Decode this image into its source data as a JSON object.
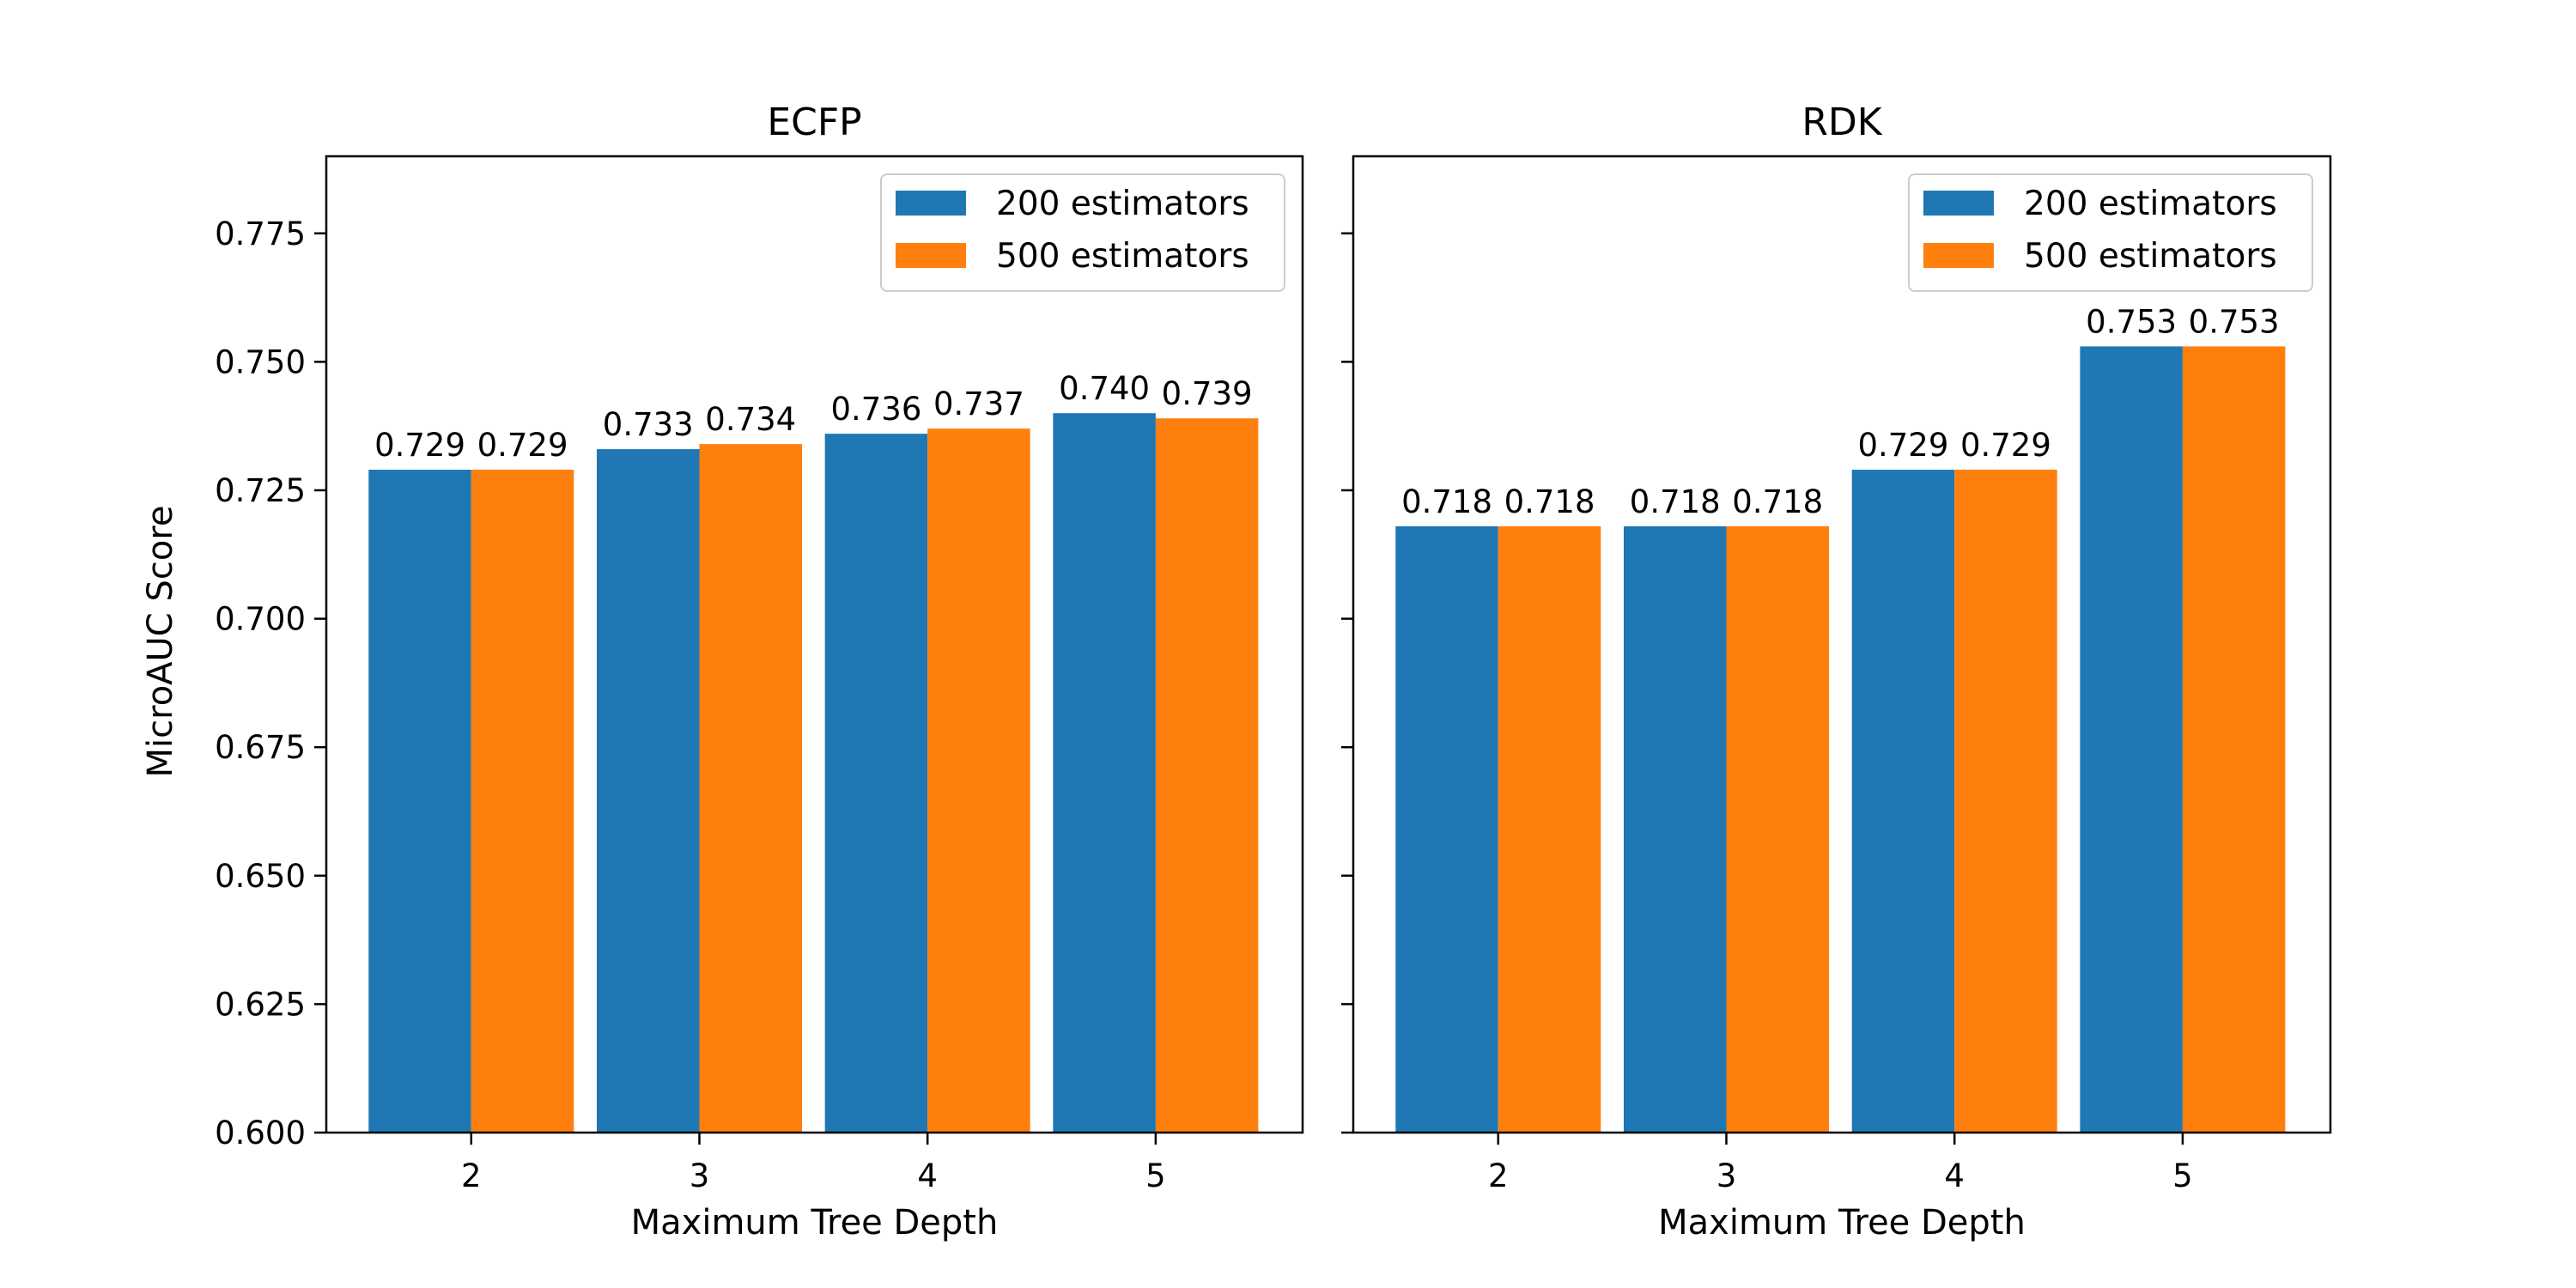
{
  "figure": {
    "ylabel": "MicroAUC Score"
  },
  "chart_data": [
    {
      "type": "bar",
      "title": "ECFP",
      "xlabel": "Maximum Tree Depth",
      "ylabel": "MicroAUC Score",
      "categories": [
        "2",
        "3",
        "4",
        "5"
      ],
      "series": [
        {
          "name": "200 estimators",
          "color": "#1f77b4",
          "values": [
            0.729,
            0.733,
            0.736,
            0.74
          ]
        },
        {
          "name": "500 estimators",
          "color": "#ff7f0e",
          "values": [
            0.729,
            0.734,
            0.737,
            0.739
          ]
        }
      ],
      "data_labels": [
        [
          "0.729",
          "0.733",
          "0.736",
          "0.740"
        ],
        [
          "0.729",
          "0.734",
          "0.737",
          "0.739"
        ]
      ],
      "ylim": [
        0.6,
        0.79
      ],
      "yticks": [
        0.6,
        0.625,
        0.65,
        0.675,
        0.7,
        0.725,
        0.75,
        0.775
      ],
      "ytick_labels": [
        "0.600",
        "0.625",
        "0.650",
        "0.675",
        "0.700",
        "0.725",
        "0.750",
        "0.775"
      ],
      "show_ytick_labels": true,
      "legend": "top-right",
      "grid": false
    },
    {
      "type": "bar",
      "title": "RDK",
      "xlabel": "Maximum Tree Depth",
      "categories": [
        "2",
        "3",
        "4",
        "5"
      ],
      "series": [
        {
          "name": "200 estimators",
          "color": "#1f77b4",
          "values": [
            0.718,
            0.718,
            0.729,
            0.753
          ]
        },
        {
          "name": "500 estimators",
          "color": "#ff7f0e",
          "values": [
            0.718,
            0.718,
            0.729,
            0.753
          ]
        }
      ],
      "data_labels": [
        [
          "0.718",
          "0.718",
          "0.729",
          "0.753"
        ],
        [
          "0.718",
          "0.718",
          "0.729",
          "0.753"
        ]
      ],
      "ylim": [
        0.6,
        0.79
      ],
      "yticks": [
        0.6,
        0.625,
        0.65,
        0.675,
        0.7,
        0.725,
        0.75,
        0.775
      ],
      "show_ytick_labels": false,
      "legend": "top-right",
      "grid": false
    }
  ]
}
